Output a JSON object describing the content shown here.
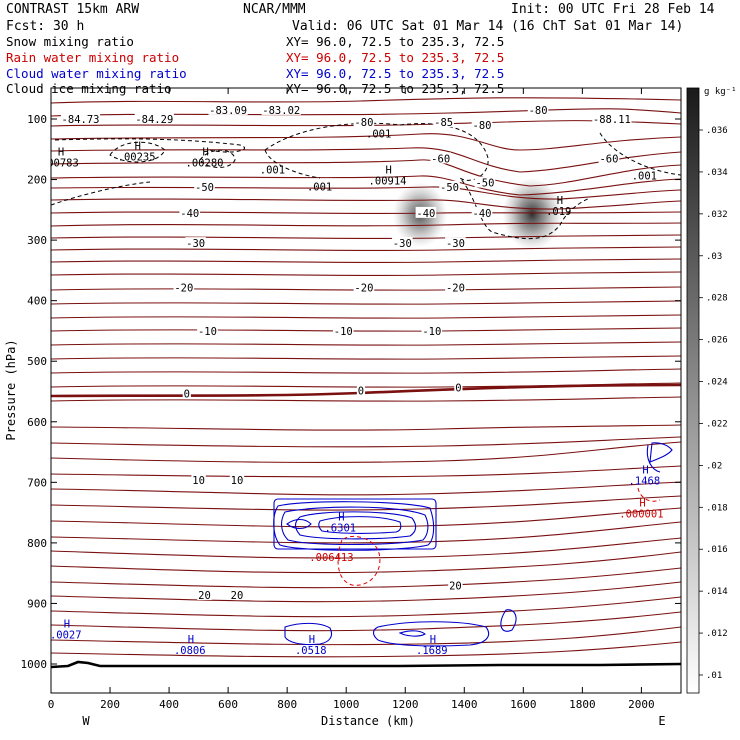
{
  "header": {
    "model": "CONTRAST 15km ARW",
    "center": "NCAR/MMM",
    "init": "Init: 00 UTC Fri 28 Feb 14",
    "fcst": "Fcst:   30 h",
    "valid": "Valid: 06 UTC Sat 01 Mar 14 (16 ChT Sat 01 Mar 14)"
  },
  "legend": [
    {
      "label": "Snow mixing ratio",
      "xy": "XY=   96.0, 72.5 to 235.3, 72.5",
      "color": "#000000"
    },
    {
      "label": "Rain water mixing ratio",
      "xy": "XY=  96.0, 72.5 to 235.3, 72.5",
      "color": "#cc0000"
    },
    {
      "label": "Cloud water mixing ratio",
      "xy": "XY=  96.0, 72.5 to 235.3, 72.5",
      "color": "#0000cc"
    },
    {
      "label": "Cloud ice mixing ratio",
      "xy": "XY=   96.0, 72.5 to 235.3, 72.5",
      "color": "#000000"
    }
  ],
  "colors": {
    "temperature": "#7a1010",
    "rain": "#dd0000",
    "cloud_water": "#0000cc",
    "terrain": "#000000"
  },
  "chart_data": {
    "type": "cross-section",
    "xlabel": "Distance (km)",
    "ylabel": "Pressure (hPa)",
    "xlim": [
      0,
      2100
    ],
    "ylim": [
      1050,
      60
    ],
    "xticks": [
      0,
      200,
      400,
      600,
      800,
      1000,
      1200,
      1400,
      1600,
      1800,
      2000
    ],
    "yticks": [
      100,
      200,
      300,
      400,
      500,
      600,
      700,
      800,
      900,
      1000
    ],
    "x_end_labels": {
      "left": "W",
      "right": "E"
    },
    "colorbar": {
      "unit": "g kg⁻¹",
      "ticks": [
        ".01",
        ".012",
        ".014",
        ".016",
        ".018",
        ".02",
        ".022",
        ".024",
        ".026",
        ".028",
        ".03",
        ".032",
        ".034",
        ".036"
      ]
    },
    "temperature_contours": [
      {
        "label": "-84.73",
        "x": 100,
        "p": 100
      },
      {
        "label": "-84.29",
        "x": 350,
        "p": 100
      },
      {
        "label": "-83.09",
        "x": 600,
        "p": 85
      },
      {
        "label": "-83.02",
        "x": 780,
        "p": 85
      },
      {
        "label": "-88.11",
        "x": 1900,
        "p": 100
      },
      {
        "label": "-80",
        "x": 1060,
        "p": 105
      },
      {
        "label": "-85",
        "x": 1330,
        "p": 105
      },
      {
        "label": "-80",
        "x": 1460,
        "p": 110
      },
      {
        "label": "-80",
        "x": 1650,
        "p": 85
      },
      {
        "label": "-60",
        "x": 1320,
        "p": 165
      },
      {
        "label": "-60",
        "x": 1890,
        "p": 165
      },
      {
        "label": "-50",
        "x": 520,
        "p": 212
      },
      {
        "label": "-50",
        "x": 1350,
        "p": 212
      },
      {
        "label": "-50",
        "x": 1470,
        "p": 205
      },
      {
        "label": "-40",
        "x": 470,
        "p": 255
      },
      {
        "label": "-40",
        "x": 1270,
        "p": 255
      },
      {
        "label": "-40",
        "x": 1460,
        "p": 255
      },
      {
        "label": "-30",
        "x": 490,
        "p": 305
      },
      {
        "label": "-30",
        "x": 1190,
        "p": 305
      },
      {
        "label": "-30",
        "x": 1370,
        "p": 305
      },
      {
        "label": "-20",
        "x": 450,
        "p": 378
      },
      {
        "label": "-20",
        "x": 1060,
        "p": 378
      },
      {
        "label": "-20",
        "x": 1370,
        "p": 378
      },
      {
        "label": "-10",
        "x": 530,
        "p": 450
      },
      {
        "label": "-10",
        "x": 990,
        "p": 450
      },
      {
        "label": "-10",
        "x": 1290,
        "p": 450
      },
      {
        "label": "0",
        "x": 460,
        "p": 553
      },
      {
        "label": "0",
        "x": 1050,
        "p": 548
      },
      {
        "label": "0",
        "x": 1380,
        "p": 543
      },
      {
        "label": "10",
        "x": 500,
        "p": 696
      },
      {
        "label": "10",
        "x": 630,
        "p": 696
      },
      {
        "label": "20",
        "x": 520,
        "p": 886
      },
      {
        "label": "20",
        "x": 630,
        "p": 886
      },
      {
        "label": "20",
        "x": 1370,
        "p": 870
      }
    ],
    "extrema_labels": [
      {
        "mark": "H",
        "value": ".00783",
        "x": 30,
        "p": 170,
        "color": "#000000"
      },
      {
        "mark": "H",
        "value": ".00235",
        "x": 290,
        "p": 160,
        "color": "#000000"
      },
      {
        "mark": "H",
        "value": ".00280",
        "x": 520,
        "p": 170,
        "color": "#000000"
      },
      {
        "mark": "",
        "value": ".001",
        "x": 1110,
        "p": 122,
        "color": "#000000"
      },
      {
        "mark": "",
        "value": ".001",
        "x": 750,
        "p": 182,
        "color": "#000000"
      },
      {
        "mark": "",
        "value": ".001",
        "x": 910,
        "p": 210,
        "color": "#000000"
      },
      {
        "mark": "H",
        "value": ".00914",
        "x": 1140,
        "p": 200,
        "color": "#000000"
      },
      {
        "mark": "H",
        "value": ".019",
        "x": 1720,
        "p": 250,
        "color": "#000000"
      },
      {
        "mark": "",
        "value": ".001",
        "x": 2010,
        "p": 192,
        "color": "#000000"
      },
      {
        "mark": "H",
        "value": ".6301",
        "x": 980,
        "p": 773,
        "color": "#0000cc"
      },
      {
        "mark": "",
        "value": ".006413",
        "x": 950,
        "p": 822,
        "color": "#cc0000"
      },
      {
        "mark": "H",
        "value": ".1468",
        "x": 2010,
        "p": 695,
        "color": "#0000cc"
      },
      {
        "mark": "H",
        "value": ".000001",
        "x": 2000,
        "p": 750,
        "color": "#cc0000"
      },
      {
        "mark": "H",
        "value": ".0027",
        "x": 50,
        "p": 950,
        "color": "#0000cc"
      },
      {
        "mark": "H",
        "value": ".0806",
        "x": 470,
        "p": 975,
        "color": "#0000cc"
      },
      {
        "mark": "H",
        "value": ".0518",
        "x": 880,
        "p": 975,
        "color": "#0000cc"
      },
      {
        "mark": "H",
        "value": ".1689",
        "x": 1290,
        "p": 975,
        "color": "#0000cc"
      }
    ],
    "snow_shading": [
      {
        "x": 1250,
        "p": 258,
        "intensity": 0.65
      },
      {
        "x": 1630,
        "p": 257,
        "intensity": 1.0
      }
    ]
  }
}
